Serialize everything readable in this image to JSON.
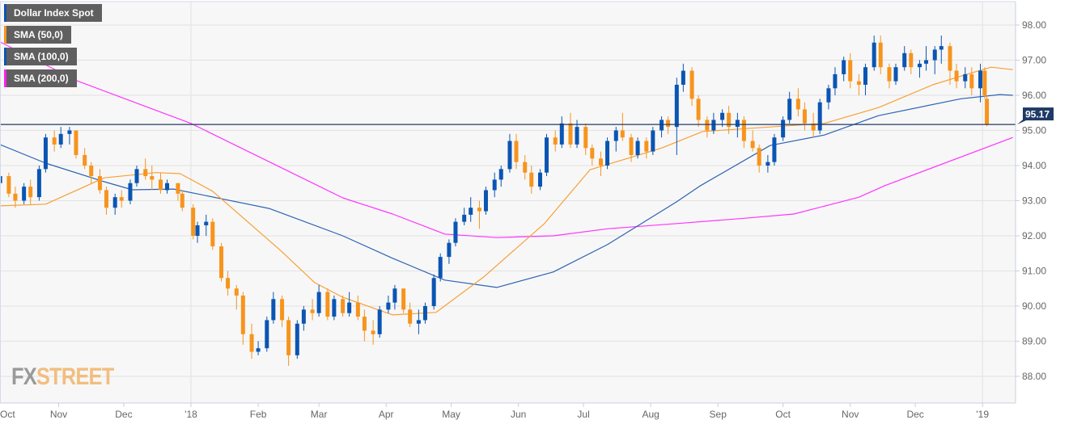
{
  "chart_data": {
    "type": "candlestick",
    "title": "",
    "ylim": [
      87.3,
      98.5
    ],
    "yticks": [
      "88.00",
      "89.00",
      "90.00",
      "91.00",
      "92.00",
      "93.00",
      "94.00",
      "95.00",
      "96.00",
      "97.00",
      "98.00"
    ],
    "xticks": [
      {
        "date": "2017-10-01",
        "label": "Oct"
      },
      {
        "date": "2017-11-01",
        "label": "Nov"
      },
      {
        "date": "2017-12-01",
        "label": "Dec"
      },
      {
        "date": "2018-01-01",
        "label": "'18"
      },
      {
        "date": "2018-02-01",
        "label": "Feb"
      },
      {
        "date": "2018-03-01",
        "label": "Mar"
      },
      {
        "date": "2018-04-01",
        "label": "Apr"
      },
      {
        "date": "2018-05-01",
        "label": "May"
      },
      {
        "date": "2018-06-01",
        "label": "Jun"
      },
      {
        "date": "2018-07-01",
        "label": "Jul"
      },
      {
        "date": "2018-08-01",
        "label": "Aug"
      },
      {
        "date": "2018-09-01",
        "label": "Sep"
      },
      {
        "date": "2018-10-01",
        "label": "Oct"
      },
      {
        "date": "2018-11-01",
        "label": "Nov"
      },
      {
        "date": "2018-12-01",
        "label": "Dec"
      },
      {
        "date": "2019-01-01",
        "label": "'19"
      }
    ],
    "grid": true,
    "last_price": 95.17,
    "last_price_label": "95.17",
    "colors": {
      "up": "#0b55b3",
      "down": "#f7941d",
      "sma50": "#f7a035",
      "sma100": "#2b63b3",
      "sma200": "#ff33ff",
      "last": "#1e3a66"
    },
    "legend": [
      {
        "label": "Dollar Index Spot",
        "color": "#0b55b3"
      },
      {
        "label": "SMA (50,0)",
        "color": "#f7941d"
      },
      {
        "label": "SMA (100,0)",
        "color": "#0b55b3"
      },
      {
        "label": "SMA (200,0)",
        "color": "#ff22ee"
      }
    ],
    "legend_placement": "top-left",
    "candles": [
      [
        "2017-10-05",
        93.5,
        93.9,
        93.3,
        93.7
      ],
      [
        "2017-10-09",
        93.7,
        93.8,
        93.1,
        93.2
      ],
      [
        "2017-10-12",
        93.2,
        93.4,
        92.8,
        93.0
      ],
      [
        "2017-10-16",
        93.0,
        93.5,
        92.9,
        93.4
      ],
      [
        "2017-10-19",
        93.4,
        93.6,
        92.9,
        93.1
      ],
      [
        "2017-10-23",
        93.1,
        94.0,
        93.0,
        93.9
      ],
      [
        "2017-10-26",
        93.9,
        94.9,
        93.8,
        94.8
      ],
      [
        "2017-10-30",
        94.8,
        95.0,
        94.4,
        94.6
      ],
      [
        "2017-11-02",
        94.6,
        95.1,
        94.5,
        94.9
      ],
      [
        "2017-11-06",
        94.9,
        95.1,
        94.6,
        95.0
      ],
      [
        "2017-11-09",
        95.0,
        95.0,
        94.2,
        94.3
      ],
      [
        "2017-11-13",
        94.3,
        94.5,
        93.9,
        94.0
      ],
      [
        "2017-11-16",
        94.0,
        94.1,
        93.5,
        93.7
      ],
      [
        "2017-11-20",
        93.7,
        93.9,
        93.2,
        93.3
      ],
      [
        "2017-11-23",
        93.3,
        93.4,
        92.6,
        92.8
      ],
      [
        "2017-11-27",
        92.8,
        93.2,
        92.6,
        93.1
      ],
      [
        "2017-11-30",
        93.1,
        93.3,
        92.8,
        93.0
      ],
      [
        "2017-12-04",
        93.0,
        93.6,
        92.9,
        93.5
      ],
      [
        "2017-12-07",
        93.5,
        94.0,
        93.4,
        93.9
      ],
      [
        "2017-12-11",
        93.9,
        94.2,
        93.6,
        93.7
      ],
      [
        "2017-12-14",
        93.7,
        94.0,
        93.3,
        93.6
      ],
      [
        "2017-12-18",
        93.6,
        93.8,
        93.2,
        93.3
      ],
      [
        "2017-12-21",
        93.3,
        93.6,
        93.2,
        93.5
      ],
      [
        "2017-12-26",
        93.5,
        93.5,
        93.0,
        93.2
      ],
      [
        "2017-12-28",
        93.2,
        93.3,
        92.7,
        92.8
      ],
      [
        "2018-01-02",
        92.8,
        92.9,
        91.9,
        92.0
      ],
      [
        "2018-01-04",
        92.0,
        92.4,
        91.8,
        92.3
      ],
      [
        "2018-01-08",
        92.3,
        92.6,
        92.0,
        92.4
      ],
      [
        "2018-01-11",
        92.4,
        92.5,
        91.6,
        91.7
      ],
      [
        "2018-01-15",
        91.7,
        91.8,
        90.7,
        90.8
      ],
      [
        "2018-01-18",
        90.8,
        91.0,
        90.3,
        90.5
      ],
      [
        "2018-01-22",
        90.5,
        90.6,
        89.9,
        90.3
      ],
      [
        "2018-01-25",
        90.3,
        90.4,
        88.9,
        89.2
      ],
      [
        "2018-01-29",
        89.2,
        89.5,
        88.5,
        88.7
      ],
      [
        "2018-02-01",
        88.7,
        89.0,
        88.6,
        88.8
      ],
      [
        "2018-02-05",
        88.8,
        89.7,
        88.7,
        89.6
      ],
      [
        "2018-02-08",
        89.6,
        90.4,
        89.5,
        90.2
      ],
      [
        "2018-02-12",
        90.2,
        90.3,
        89.4,
        89.6
      ],
      [
        "2018-02-15",
        89.6,
        89.7,
        88.3,
        88.6
      ],
      [
        "2018-02-19",
        88.6,
        89.6,
        88.5,
        89.5
      ],
      [
        "2018-02-22",
        89.5,
        90.0,
        89.3,
        89.9
      ],
      [
        "2018-02-26",
        89.9,
        90.2,
        89.6,
        89.8
      ],
      [
        "2018-03-01",
        89.8,
        90.6,
        89.7,
        90.4
      ],
      [
        "2018-03-05",
        90.4,
        90.5,
        89.6,
        89.7
      ],
      [
        "2018-03-08",
        89.7,
        90.3,
        89.6,
        90.2
      ],
      [
        "2018-03-12",
        90.2,
        90.3,
        89.7,
        89.8
      ],
      [
        "2018-03-15",
        89.8,
        90.4,
        89.7,
        90.1
      ],
      [
        "2018-03-19",
        90.1,
        90.3,
        89.6,
        89.7
      ],
      [
        "2018-03-22",
        89.7,
        89.9,
        89.0,
        89.3
      ],
      [
        "2018-03-26",
        89.3,
        89.6,
        88.9,
        89.2
      ],
      [
        "2018-03-29",
        89.2,
        90.0,
        89.1,
        89.9
      ],
      [
        "2018-04-02",
        89.9,
        90.3,
        89.8,
        90.1
      ],
      [
        "2018-04-05",
        90.1,
        90.6,
        89.9,
        90.5
      ],
      [
        "2018-04-09",
        90.5,
        90.5,
        89.8,
        89.9
      ],
      [
        "2018-04-12",
        89.9,
        90.1,
        89.4,
        89.5
      ],
      [
        "2018-04-16",
        89.5,
        89.9,
        89.2,
        89.6
      ],
      [
        "2018-04-19",
        89.6,
        90.1,
        89.5,
        90.0
      ],
      [
        "2018-04-23",
        90.0,
        90.9,
        89.9,
        90.8
      ],
      [
        "2018-04-26",
        90.8,
        91.5,
        90.7,
        91.4
      ],
      [
        "2018-04-30",
        91.4,
        91.9,
        91.2,
        91.8
      ],
      [
        "2018-05-03",
        91.8,
        92.5,
        91.7,
        92.4
      ],
      [
        "2018-05-07",
        92.4,
        92.8,
        92.3,
        92.6
      ],
      [
        "2018-05-10",
        92.6,
        93.1,
        92.4,
        92.8
      ],
      [
        "2018-05-14",
        92.8,
        93.0,
        92.2,
        92.7
      ],
      [
        "2018-05-17",
        92.7,
        93.4,
        92.6,
        93.3
      ],
      [
        "2018-05-21",
        93.3,
        93.8,
        93.1,
        93.6
      ],
      [
        "2018-05-24",
        93.6,
        94.0,
        93.4,
        93.9
      ],
      [
        "2018-05-28",
        93.9,
        94.9,
        93.8,
        94.7
      ],
      [
        "2018-05-31",
        94.7,
        94.9,
        93.9,
        94.1
      ],
      [
        "2018-06-04",
        94.1,
        94.3,
        93.6,
        93.8
      ],
      [
        "2018-06-07",
        93.8,
        94.0,
        93.2,
        93.4
      ],
      [
        "2018-06-11",
        93.4,
        93.9,
        93.3,
        93.8
      ],
      [
        "2018-06-14",
        93.8,
        94.9,
        93.7,
        94.8
      ],
      [
        "2018-06-18",
        94.8,
        95.0,
        94.4,
        94.6
      ],
      [
        "2018-06-21",
        94.6,
        95.4,
        94.5,
        95.2
      ],
      [
        "2018-06-25",
        95.2,
        95.5,
        94.5,
        94.6
      ],
      [
        "2018-06-28",
        94.6,
        95.3,
        94.5,
        95.1
      ],
      [
        "2018-07-02",
        95.1,
        95.2,
        94.3,
        94.5
      ],
      [
        "2018-07-05",
        94.5,
        94.6,
        94.0,
        94.2
      ],
      [
        "2018-07-09",
        94.2,
        94.4,
        93.7,
        94.0
      ],
      [
        "2018-07-12",
        94.0,
        94.8,
        93.9,
        94.7
      ],
      [
        "2018-07-16",
        94.7,
        95.1,
        94.4,
        95.0
      ],
      [
        "2018-07-19",
        95.0,
        95.5,
        94.7,
        94.8
      ],
      [
        "2018-07-23",
        94.8,
        94.9,
        94.1,
        94.3
      ],
      [
        "2018-07-26",
        94.3,
        94.8,
        94.2,
        94.7
      ],
      [
        "2018-07-30",
        94.7,
        94.8,
        94.2,
        94.4
      ],
      [
        "2018-08-02",
        94.4,
        95.1,
        94.3,
        95.0
      ],
      [
        "2018-08-06",
        95.0,
        95.4,
        94.8,
        95.3
      ],
      [
        "2018-08-09",
        95.3,
        95.4,
        94.9,
        95.1
      ],
      [
        "2018-08-13",
        95.1,
        96.5,
        94.3,
        96.3
      ],
      [
        "2018-08-16",
        96.3,
        96.9,
        96.1,
        96.7
      ],
      [
        "2018-08-20",
        96.7,
        96.8,
        95.7,
        95.9
      ],
      [
        "2018-08-23",
        95.9,
        96.0,
        95.1,
        95.3
      ],
      [
        "2018-08-27",
        95.3,
        95.4,
        94.8,
        95.0
      ],
      [
        "2018-08-30",
        95.0,
        95.5,
        94.9,
        95.3
      ],
      [
        "2018-09-03",
        95.3,
        95.6,
        95.1,
        95.5
      ],
      [
        "2018-09-06",
        95.5,
        95.7,
        94.9,
        95.1
      ],
      [
        "2018-09-10",
        95.1,
        95.5,
        94.8,
        95.3
      ],
      [
        "2018-09-13",
        95.3,
        95.4,
        94.5,
        94.7
      ],
      [
        "2018-09-17",
        94.7,
        95.0,
        94.4,
        94.5
      ],
      [
        "2018-09-20",
        94.5,
        94.6,
        93.8,
        94.0
      ],
      [
        "2018-09-24",
        94.0,
        94.3,
        93.8,
        94.1
      ],
      [
        "2018-09-27",
        94.1,
        94.9,
        94.0,
        94.8
      ],
      [
        "2018-10-01",
        94.8,
        95.4,
        94.7,
        95.3
      ],
      [
        "2018-10-04",
        95.3,
        96.1,
        95.2,
        95.9
      ],
      [
        "2018-10-08",
        95.9,
        96.2,
        95.4,
        95.6
      ],
      [
        "2018-10-11",
        95.6,
        95.8,
        95.0,
        95.2
      ],
      [
        "2018-10-15",
        95.2,
        95.5,
        94.8,
        95.0
      ],
      [
        "2018-10-18",
        95.0,
        95.9,
        94.9,
        95.8
      ],
      [
        "2018-10-22",
        95.8,
        96.3,
        95.6,
        96.2
      ],
      [
        "2018-10-25",
        96.2,
        96.8,
        96.0,
        96.6
      ],
      [
        "2018-10-29",
        96.6,
        97.1,
        96.4,
        97.0
      ],
      [
        "2018-11-01",
        97.0,
        97.2,
        96.2,
        96.4
      ],
      [
        "2018-11-05",
        96.4,
        96.6,
        96.0,
        96.3
      ],
      [
        "2018-11-08",
        96.3,
        96.9,
        96.0,
        96.8
      ],
      [
        "2018-11-12",
        96.8,
        97.7,
        96.7,
        97.5
      ],
      [
        "2018-11-15",
        97.5,
        97.7,
        96.6,
        96.8
      ],
      [
        "2018-11-19",
        96.8,
        96.9,
        96.2,
        96.4
      ],
      [
        "2018-11-22",
        96.4,
        96.9,
        96.3,
        96.8
      ],
      [
        "2018-11-26",
        96.8,
        97.4,
        96.7,
        97.2
      ],
      [
        "2018-11-29",
        97.2,
        97.3,
        96.6,
        96.8
      ],
      [
        "2018-12-03",
        96.8,
        97.0,
        96.5,
        96.9
      ],
      [
        "2018-12-06",
        96.9,
        97.4,
        96.7,
        97.0
      ],
      [
        "2018-12-10",
        97.0,
        97.4,
        96.6,
        97.3
      ],
      [
        "2018-12-13",
        97.3,
        97.7,
        96.9,
        97.4
      ],
      [
        "2018-12-17",
        97.4,
        97.5,
        96.3,
        96.7
      ],
      [
        "2018-12-20",
        96.7,
        96.9,
        96.2,
        96.4
      ],
      [
        "2018-12-24",
        96.4,
        96.8,
        96.2,
        96.6
      ],
      [
        "2018-12-27",
        96.6,
        96.8,
        96.0,
        96.2
      ],
      [
        "2018-12-31",
        96.2,
        96.9,
        95.8,
        96.7
      ],
      [
        "2019-01-02",
        96.7,
        96.8,
        95.9,
        96.0
      ],
      [
        "2019-01-03",
        95.9,
        96.0,
        95.12,
        95.17
      ]
    ],
    "sma50": [
      [
        "2017-10-04",
        92.85
      ],
      [
        "2017-10-26",
        92.9
      ],
      [
        "2017-11-22",
        93.65
      ],
      [
        "2017-12-16",
        93.8
      ],
      [
        "2017-12-27",
        93.77
      ],
      [
        "2018-01-11",
        93.27
      ],
      [
        "2018-02-11",
        91.6
      ],
      [
        "2018-02-27",
        90.67
      ],
      [
        "2018-03-12",
        90.25
      ],
      [
        "2018-04-04",
        89.75
      ],
      [
        "2018-04-24",
        89.82
      ],
      [
        "2018-05-16",
        90.83
      ],
      [
        "2018-06-13",
        92.35
      ],
      [
        "2018-07-04",
        93.88
      ],
      [
        "2018-08-06",
        94.5
      ],
      [
        "2018-08-25",
        94.97
      ],
      [
        "2018-09-25",
        95.1
      ],
      [
        "2018-10-20",
        95.2
      ],
      [
        "2018-11-14",
        95.65
      ],
      [
        "2018-12-09",
        96.3
      ],
      [
        "2018-12-27",
        96.64
      ],
      [
        "2019-01-05",
        96.8
      ],
      [
        "2019-01-15",
        96.73
      ]
    ],
    "sma100": [
      [
        "2017-10-04",
        94.62
      ],
      [
        "2017-10-26",
        94.07
      ],
      [
        "2017-11-22",
        93.54
      ],
      [
        "2017-12-05",
        93.31
      ],
      [
        "2017-12-24",
        93.33
      ],
      [
        "2018-02-06",
        92.78
      ],
      [
        "2018-03-12",
        92.0
      ],
      [
        "2018-04-04",
        91.36
      ],
      [
        "2018-04-28",
        90.74
      ],
      [
        "2018-05-22",
        90.53
      ],
      [
        "2018-06-17",
        90.97
      ],
      [
        "2018-07-12",
        91.75
      ],
      [
        "2018-08-13",
        92.97
      ],
      [
        "2018-08-24",
        93.43
      ],
      [
        "2018-09-25",
        94.57
      ],
      [
        "2018-10-20",
        94.87
      ],
      [
        "2018-11-14",
        95.42
      ],
      [
        "2018-12-22",
        95.9
      ],
      [
        "2019-01-09",
        96.02
      ],
      [
        "2019-01-15",
        96.0
      ]
    ],
    "sma200": [
      [
        "2017-10-04",
        97.55
      ],
      [
        "2017-11-10",
        96.4
      ],
      [
        "2018-01-01",
        95.2
      ],
      [
        "2018-03-12",
        93.08
      ],
      [
        "2018-04-04",
        92.62
      ],
      [
        "2018-04-28",
        92.05
      ],
      [
        "2018-05-22",
        91.95
      ],
      [
        "2018-06-17",
        92.0
      ],
      [
        "2018-07-12",
        92.2
      ],
      [
        "2018-08-13",
        92.35
      ],
      [
        "2018-09-13",
        92.5
      ],
      [
        "2018-10-06",
        92.62
      ],
      [
        "2018-11-05",
        93.1
      ],
      [
        "2018-11-17",
        93.43
      ],
      [
        "2019-01-15",
        94.8
      ]
    ]
  },
  "logo": {
    "part1": "FX",
    "part2": "STREET"
  }
}
